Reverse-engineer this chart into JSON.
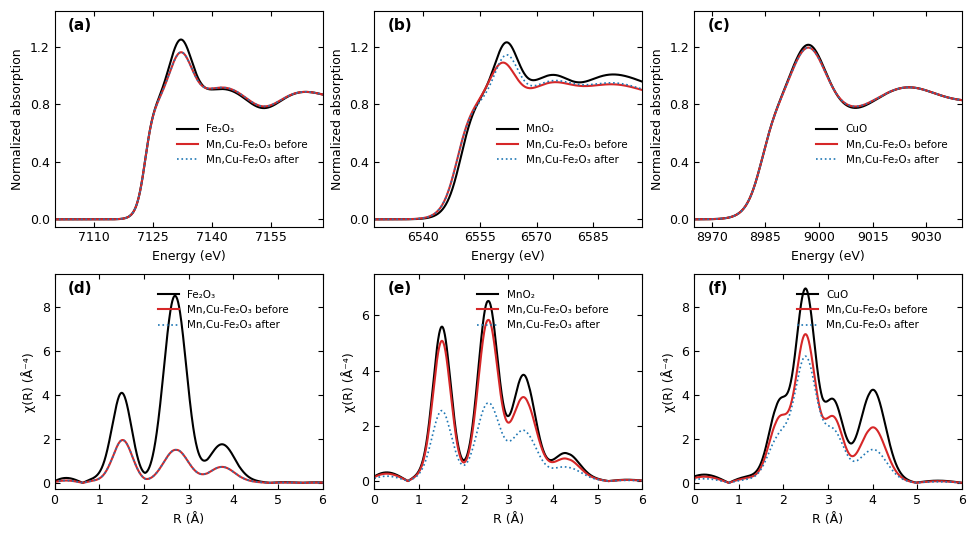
{
  "panels": {
    "a": {
      "label": "(a)",
      "xlabel": "Energy (eV)",
      "ylabel": "Normalized absorption",
      "xlim": [
        7100,
        7168
      ],
      "ylim": [
        -0.05,
        1.45
      ],
      "xticks": [
        7110,
        7125,
        7140,
        7155
      ],
      "yticks": [
        0.0,
        0.4,
        0.8,
        1.2
      ],
      "legend": [
        "Fe₂O₃",
        "Mn,Cu-Fe₂O₃ before",
        "Mn,Cu-Fe₂O₃ after"
      ],
      "legend_loc": "center right"
    },
    "b": {
      "label": "(b)",
      "xlabel": "Energy (eV)",
      "ylabel": "Normalized absorption",
      "xlim": [
        6527,
        6598
      ],
      "ylim": [
        -0.05,
        1.45
      ],
      "xticks": [
        6540,
        6555,
        6570,
        6585
      ],
      "yticks": [
        0.0,
        0.4,
        0.8,
        1.2
      ],
      "legend": [
        "MnO₂",
        "Mn,Cu-Fe₂O₃ before",
        "Mn,Cu-Fe₂O₃ after"
      ],
      "legend_loc": "center right"
    },
    "c": {
      "label": "(c)",
      "xlabel": "Energy (eV)",
      "ylabel": "Normalized absorption",
      "xlim": [
        8965,
        9040
      ],
      "ylim": [
        -0.05,
        1.45
      ],
      "xticks": [
        8970,
        8985,
        9000,
        9015,
        9030
      ],
      "yticks": [
        0.0,
        0.4,
        0.8,
        1.2
      ],
      "legend": [
        "CuO",
        "Mn,Cu-Fe₂O₃ before",
        "Mn,Cu-Fe₂O₃ after"
      ],
      "legend_loc": "center right"
    },
    "d": {
      "label": "(d)",
      "xlabel": "R (Å)",
      "ylabel": "χ(R) (Å⁻⁴)",
      "xlim": [
        0,
        6
      ],
      "ylim": [
        -0.3,
        9.5
      ],
      "xticks": [
        0,
        1,
        2,
        3,
        4,
        5,
        6
      ],
      "yticks": [
        0,
        2,
        4,
        6,
        8
      ],
      "legend": [
        "Fe₂O₃",
        "Mn,Cu-Fe₂O₃ before",
        "Mn,Cu-Fe₂O₃ after"
      ],
      "legend_loc": "upper left"
    },
    "e": {
      "label": "(e)",
      "xlabel": "R (Å)",
      "ylabel": "χ(R) (Å⁻⁴)",
      "xlim": [
        0,
        6
      ],
      "ylim": [
        -0.3,
        7.5
      ],
      "xticks": [
        0,
        1,
        2,
        3,
        4,
        5,
        6
      ],
      "yticks": [
        0,
        2,
        4,
        6
      ],
      "legend": [
        "MnO₂",
        "Mn,Cu-Fe₂O₃ before",
        "Mn,Cu-Fe₂O₃ after"
      ],
      "legend_loc": "upper left"
    },
    "f": {
      "label": "(f)",
      "xlabel": "R (Å)",
      "ylabel": "χ(R) (Å⁻⁴)",
      "xlim": [
        0,
        6
      ],
      "ylim": [
        -0.3,
        9.5
      ],
      "xticks": [
        0,
        1,
        2,
        3,
        4,
        5,
        6
      ],
      "yticks": [
        0,
        2,
        4,
        6,
        8
      ],
      "legend": [
        "CuO",
        "Mn,Cu-Fe₂O₃ before",
        "Mn,Cu-Fe₂O₃ after"
      ],
      "legend_loc": "upper left"
    }
  },
  "colors": {
    "black": "#000000",
    "red": "#d62728",
    "blue": "#1f77b4"
  }
}
